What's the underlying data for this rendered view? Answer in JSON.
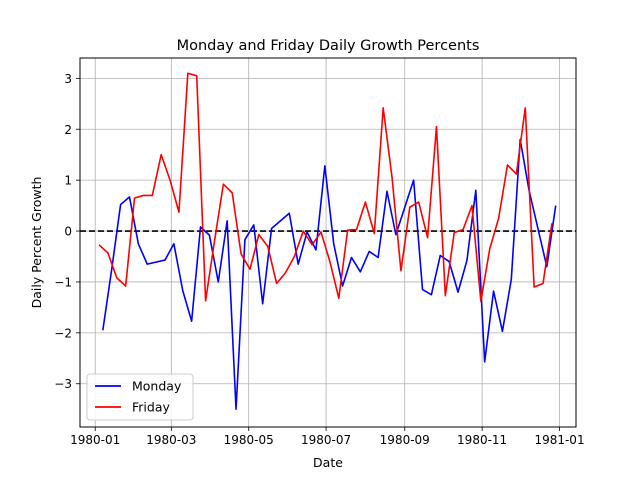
{
  "chart_data": {
    "type": "line",
    "title": "Monday and Friday Daily Growth Percents",
    "xlabel": "Date",
    "ylabel": "Daily Percent Growth",
    "xlim": [
      "1979-12-20",
      "1981-01-14"
    ],
    "ylim": [
      -3.85,
      3.4
    ],
    "x_ticks": [
      "1980-01-01",
      "1980-03-01",
      "1980-05-01",
      "1980-07-01",
      "1980-09-01",
      "1980-11-01",
      "1981-01-01"
    ],
    "x_tick_labels": [
      "1980-01",
      "1980-03",
      "1980-05",
      "1980-07",
      "1980-09",
      "1980-11",
      "1981-01"
    ],
    "y_ticks": [
      -3,
      -2,
      -1,
      0,
      1,
      2,
      3
    ],
    "y_tick_labels": [
      "−3",
      "−2",
      "−1",
      "0",
      "1",
      "2",
      "3"
    ],
    "grid": true,
    "legend_position": "lower-left",
    "reference_line": {
      "y": 0,
      "style": "dashed",
      "color": "#000000"
    },
    "series": [
      {
        "name": "Monday",
        "color": "#0000ff",
        "points": [
          {
            "x": "1980-01-07",
            "y": -1.95
          },
          {
            "x": "1980-01-14",
            "y": -0.75
          },
          {
            "x": "1980-01-21",
            "y": 0.52
          },
          {
            "x": "1980-01-28",
            "y": 0.67
          },
          {
            "x": "1980-02-04",
            "y": -0.25
          },
          {
            "x": "1980-02-11",
            "y": -0.65
          },
          {
            "x": "1980-02-25",
            "y": -0.57
          },
          {
            "x": "1980-03-03",
            "y": -0.25
          },
          {
            "x": "1980-03-10",
            "y": -1.17
          },
          {
            "x": "1980-03-17",
            "y": -1.77
          },
          {
            "x": "1980-03-24",
            "y": 0.08
          },
          {
            "x": "1980-03-31",
            "y": -0.08
          },
          {
            "x": "1980-04-07",
            "y": -1.0
          },
          {
            "x": "1980-04-14",
            "y": 0.2
          },
          {
            "x": "1980-04-21",
            "y": -3.5
          },
          {
            "x": "1980-04-28",
            "y": -0.17
          },
          {
            "x": "1980-05-05",
            "y": 0.12
          },
          {
            "x": "1980-05-12",
            "y": -1.43
          },
          {
            "x": "1980-05-19",
            "y": 0.05
          },
          {
            "x": "1980-06-02",
            "y": 0.35
          },
          {
            "x": "1980-06-09",
            "y": -0.65
          },
          {
            "x": "1980-06-16",
            "y": -0.02
          },
          {
            "x": "1980-06-23",
            "y": -0.37
          },
          {
            "x": "1980-06-30",
            "y": 1.28
          },
          {
            "x": "1980-07-07",
            "y": -0.25
          },
          {
            "x": "1980-07-14",
            "y": -1.08
          },
          {
            "x": "1980-07-21",
            "y": -0.52
          },
          {
            "x": "1980-07-28",
            "y": -0.8
          },
          {
            "x": "1980-08-04",
            "y": -0.4
          },
          {
            "x": "1980-08-11",
            "y": -0.52
          },
          {
            "x": "1980-08-18",
            "y": 0.78
          },
          {
            "x": "1980-08-25",
            "y": -0.07
          },
          {
            "x": "1980-09-08",
            "y": 1.0
          },
          {
            "x": "1980-09-15",
            "y": -1.15
          },
          {
            "x": "1980-09-22",
            "y": -1.25
          },
          {
            "x": "1980-09-29",
            "y": -0.48
          },
          {
            "x": "1980-10-06",
            "y": -0.6
          },
          {
            "x": "1980-10-13",
            "y": -1.2
          },
          {
            "x": "1980-10-20",
            "y": -0.58
          },
          {
            "x": "1980-10-27",
            "y": 0.8
          },
          {
            "x": "1980-11-03",
            "y": -2.57
          },
          {
            "x": "1980-11-10",
            "y": -1.18
          },
          {
            "x": "1980-11-17",
            "y": -1.97
          },
          {
            "x": "1980-11-24",
            "y": -0.95
          },
          {
            "x": "1980-12-01",
            "y": 1.8
          },
          {
            "x": "1980-12-08",
            "y": 0.8
          },
          {
            "x": "1980-12-15",
            "y": 0.05
          },
          {
            "x": "1980-12-22",
            "y": -0.7
          },
          {
            "x": "1980-12-29",
            "y": 0.5
          }
        ]
      },
      {
        "name": "Friday",
        "color": "#ff0000",
        "points": [
          {
            "x": "1980-01-04",
            "y": -0.27
          },
          {
            "x": "1980-01-11",
            "y": -0.43
          },
          {
            "x": "1980-01-18",
            "y": -0.92
          },
          {
            "x": "1980-01-25",
            "y": -1.08
          },
          {
            "x": "1980-02-01",
            "y": 0.65
          },
          {
            "x": "1980-02-08",
            "y": 0.7
          },
          {
            "x": "1980-02-15",
            "y": 0.7
          },
          {
            "x": "1980-02-22",
            "y": 1.5
          },
          {
            "x": "1980-02-29",
            "y": 1.0
          },
          {
            "x": "1980-03-07",
            "y": 0.37
          },
          {
            "x": "1980-03-14",
            "y": 3.1
          },
          {
            "x": "1980-03-21",
            "y": 3.05
          },
          {
            "x": "1980-03-28",
            "y": -1.37
          },
          {
            "x": "1980-04-04",
            "y": -0.2
          },
          {
            "x": "1980-04-11",
            "y": 0.92
          },
          {
            "x": "1980-04-18",
            "y": 0.75
          },
          {
            "x": "1980-04-25",
            "y": -0.45
          },
          {
            "x": "1980-05-02",
            "y": -0.75
          },
          {
            "x": "1980-05-09",
            "y": -0.07
          },
          {
            "x": "1980-05-16",
            "y": -0.3
          },
          {
            "x": "1980-05-23",
            "y": -1.03
          },
          {
            "x": "1980-05-30",
            "y": -0.82
          },
          {
            "x": "1980-06-06",
            "y": -0.5
          },
          {
            "x": "1980-06-13",
            "y": 0.0
          },
          {
            "x": "1980-06-20",
            "y": -0.27
          },
          {
            "x": "1980-06-27",
            "y": -0.02
          },
          {
            "x": "1980-07-04",
            "y": -0.6
          },
          {
            "x": "1980-07-11",
            "y": -1.32
          },
          {
            "x": "1980-07-18",
            "y": 0.02
          },
          {
            "x": "1980-07-25",
            "y": 0.03
          },
          {
            "x": "1980-08-01",
            "y": 0.57
          },
          {
            "x": "1980-08-08",
            "y": -0.05
          },
          {
            "x": "1980-08-15",
            "y": 2.42
          },
          {
            "x": "1980-08-22",
            "y": 1.05
          },
          {
            "x": "1980-08-29",
            "y": -0.78
          },
          {
            "x": "1980-09-05",
            "y": 0.47
          },
          {
            "x": "1980-09-12",
            "y": 0.57
          },
          {
            "x": "1980-09-19",
            "y": -0.13
          },
          {
            "x": "1980-09-26",
            "y": 2.05
          },
          {
            "x": "1980-10-03",
            "y": -1.27
          },
          {
            "x": "1980-10-10",
            "y": -0.03
          },
          {
            "x": "1980-10-17",
            "y": 0.03
          },
          {
            "x": "1980-10-24",
            "y": 0.5
          },
          {
            "x": "1980-10-31",
            "y": -1.38
          },
          {
            "x": "1980-11-07",
            "y": -0.35
          },
          {
            "x": "1980-11-14",
            "y": 0.25
          },
          {
            "x": "1980-11-21",
            "y": 1.3
          },
          {
            "x": "1980-11-28",
            "y": 1.12
          },
          {
            "x": "1980-12-05",
            "y": 2.42
          },
          {
            "x": "1980-12-12",
            "y": -1.1
          },
          {
            "x": "1980-12-19",
            "y": -1.03
          },
          {
            "x": "1980-12-26",
            "y": 0.15
          }
        ]
      }
    ]
  }
}
